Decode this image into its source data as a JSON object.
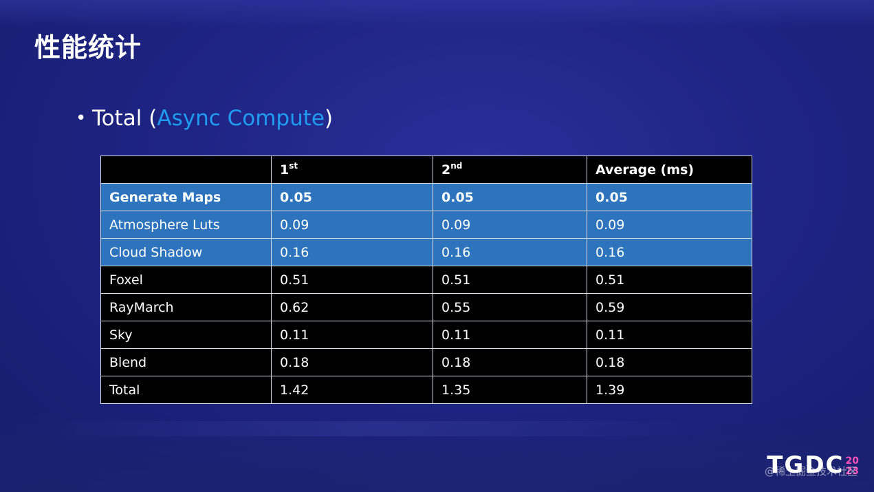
{
  "title": "性能统计",
  "bullet": {
    "prefix": "Total (",
    "highlight": "Async Compute",
    "suffix": ")",
    "highlight_color": "#1f9bf0"
  },
  "table": {
    "headers": [
      {
        "text": "",
        "sup": ""
      },
      {
        "text": "1",
        "sup": "st"
      },
      {
        "text": "2",
        "sup": "nd"
      },
      {
        "text": "Average (ms)",
        "sup": ""
      }
    ],
    "rows": [
      {
        "cells": [
          "Generate Maps",
          "0.05",
          "0.05",
          "0.05"
        ],
        "style": "hl bold"
      },
      {
        "cells": [
          "Atmosphere Luts",
          "0.09",
          "0.09",
          "0.09"
        ],
        "style": "hl"
      },
      {
        "cells": [
          "Cloud Shadow",
          "0.16",
          "0.16",
          "0.16"
        ],
        "style": "hl"
      },
      {
        "cells": [
          "Foxel",
          "0.51",
          "0.51",
          "0.51"
        ],
        "style": "dark"
      },
      {
        "cells": [
          "RayMarch",
          "0.62",
          "0.55",
          "0.59"
        ],
        "style": "dark"
      },
      {
        "cells": [
          "Sky",
          "0.11",
          "0.11",
          "0.11"
        ],
        "style": "dark"
      },
      {
        "cells": [
          "Blend",
          "0.18",
          "0.18",
          "0.18"
        ],
        "style": "dark"
      },
      {
        "cells": [
          "Total",
          "1.42",
          "1.35",
          "1.39"
        ],
        "style": "dark"
      }
    ],
    "highlight_row_color": "#2d74bd",
    "dark_row_color": "#000000"
  },
  "logo": {
    "text": "TGDC",
    "year_top": "20",
    "year_bottom": "23",
    "icon": "tgdc-logo"
  },
  "watermark": "@稀土掘金技术社区"
}
